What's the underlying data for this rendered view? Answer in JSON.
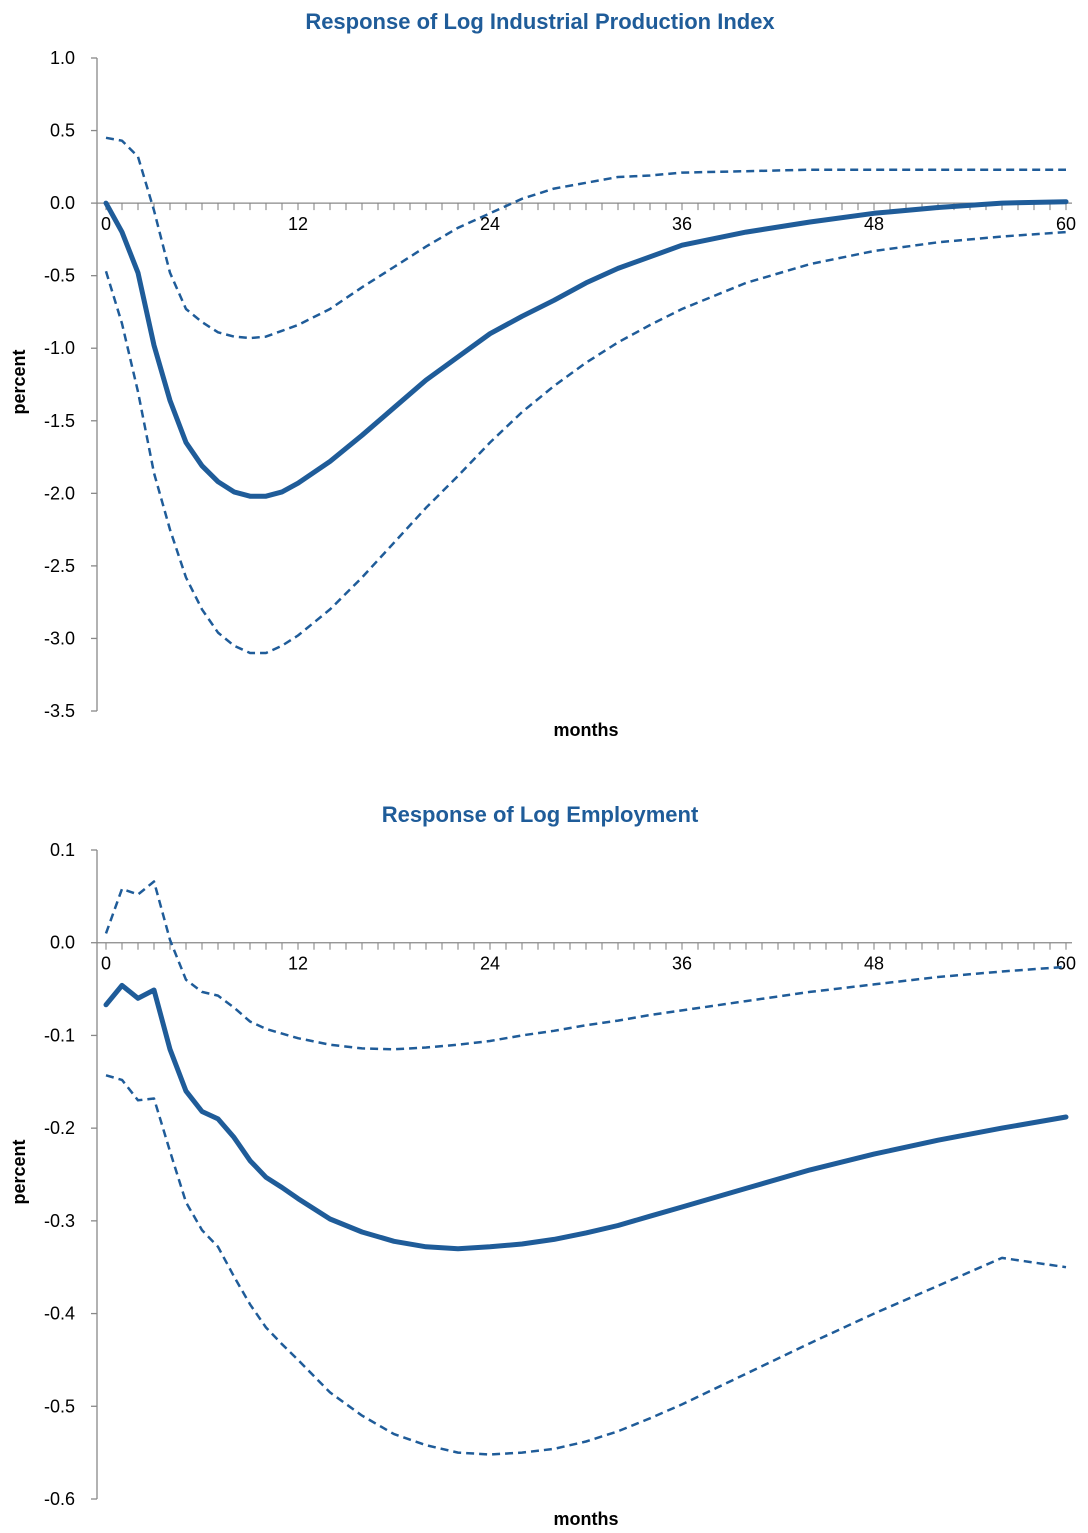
{
  "chart_data": [
    {
      "type": "line",
      "title": "Response of Log Industrial Production Index",
      "xlabel": "months",
      "ylabel": "percent",
      "xlim": [
        0,
        60
      ],
      "ylim": [
        -3.5,
        1.0
      ],
      "yticks": [
        1.0,
        0.5,
        0.0,
        -0.5,
        -1.0,
        -1.5,
        -2.0,
        -2.5,
        -3.0,
        -3.5
      ],
      "ytick_labels": [
        "1.0",
        "0.5",
        "0.0",
        "-0.5",
        "-1.0",
        "-1.5",
        "-2.0",
        "-2.5",
        "-3.0",
        "-3.5"
      ],
      "xticks": [
        0,
        12,
        24,
        36,
        48,
        60
      ],
      "xtick_labels": [
        "0",
        "12",
        "24",
        "36",
        "48",
        "60"
      ],
      "grid": false,
      "color": "#1f5c99",
      "series": [
        {
          "style": "solid",
          "x": [
            0,
            1,
            2,
            3,
            4,
            5,
            6,
            7,
            8,
            9,
            10,
            11,
            12,
            14,
            16,
            18,
            20,
            22,
            24,
            26,
            28,
            30,
            32,
            34,
            36,
            40,
            44,
            48,
            52,
            56,
            60
          ],
          "y": [
            0,
            -0.2,
            -0.48,
            -0.98,
            -1.36,
            -1.65,
            -1.81,
            -1.92,
            -1.99,
            -2.02,
            -2.02,
            -1.99,
            -1.93,
            -1.78,
            -1.6,
            -1.41,
            -1.22,
            -1.06,
            -0.9,
            -0.78,
            -0.67,
            -0.55,
            -0.45,
            -0.37,
            -0.29,
            -0.2,
            -0.13,
            -0.07,
            -0.03,
            0.0,
            0.01
          ]
        },
        {
          "style": "dashed",
          "x": [
            0,
            1,
            2,
            3,
            4,
            5,
            6,
            7,
            8,
            9,
            10,
            11,
            12,
            14,
            16,
            18,
            20,
            22,
            24,
            26,
            28,
            30,
            32,
            34,
            36,
            40,
            44,
            48,
            52,
            56,
            60
          ],
          "y": [
            0.45,
            0.43,
            0.32,
            -0.05,
            -0.48,
            -0.73,
            -0.82,
            -0.89,
            -0.92,
            -0.93,
            -0.92,
            -0.88,
            -0.84,
            -0.73,
            -0.58,
            -0.44,
            -0.3,
            -0.17,
            -0.07,
            0.03,
            0.1,
            0.14,
            0.18,
            0.19,
            0.21,
            0.22,
            0.23,
            0.23,
            0.23,
            0.23,
            0.23
          ]
        },
        {
          "style": "dashed",
          "x": [
            0,
            1,
            2,
            3,
            4,
            5,
            6,
            7,
            8,
            9,
            10,
            11,
            12,
            14,
            16,
            18,
            20,
            22,
            24,
            26,
            28,
            30,
            32,
            34,
            36,
            40,
            44,
            48,
            52,
            56,
            60
          ],
          "y": [
            -0.47,
            -0.83,
            -1.3,
            -1.86,
            -2.25,
            -2.58,
            -2.8,
            -2.96,
            -3.05,
            -3.1,
            -3.1,
            -3.05,
            -2.98,
            -2.8,
            -2.58,
            -2.34,
            -2.1,
            -1.88,
            -1.65,
            -1.44,
            -1.26,
            -1.1,
            -0.96,
            -0.84,
            -0.73,
            -0.55,
            -0.42,
            -0.33,
            -0.27,
            -0.23,
            -0.2
          ]
        }
      ]
    },
    {
      "type": "line",
      "title": "Response of Log Employment",
      "xlabel": "months",
      "ylabel": "percent",
      "xlim": [
        0,
        60
      ],
      "ylim": [
        -0.6,
        0.1
      ],
      "yticks": [
        0.1,
        0.0,
        -0.1,
        -0.2,
        -0.3,
        -0.4,
        -0.5,
        -0.6
      ],
      "ytick_labels": [
        "0.1",
        "0.0",
        "-0.1",
        "-0.2",
        "-0.3",
        "-0.4",
        "-0.5",
        "-0.6"
      ],
      "xticks": [
        0,
        12,
        24,
        36,
        48,
        60
      ],
      "xtick_labels": [
        "0",
        "12",
        "24",
        "36",
        "48",
        "60"
      ],
      "grid": false,
      "color": "#1f5c99",
      "series": [
        {
          "style": "solid",
          "x": [
            0,
            1,
            2,
            3,
            4,
            5,
            6,
            7,
            8,
            9,
            10,
            11,
            12,
            14,
            16,
            18,
            20,
            22,
            24,
            26,
            28,
            30,
            32,
            34,
            36,
            40,
            44,
            48,
            52,
            56,
            60
          ],
          "y": [
            -0.067,
            -0.046,
            -0.06,
            -0.051,
            -0.115,
            -0.16,
            -0.182,
            -0.19,
            -0.21,
            -0.235,
            -0.253,
            -0.264,
            -0.276,
            -0.298,
            -0.312,
            -0.322,
            -0.328,
            -0.33,
            -0.328,
            -0.325,
            -0.32,
            -0.313,
            -0.305,
            -0.295,
            -0.285,
            -0.265,
            -0.245,
            -0.228,
            -0.213,
            -0.2,
            -0.188
          ]
        },
        {
          "style": "dashed",
          "x": [
            0,
            1,
            2,
            3,
            4,
            5,
            6,
            7,
            8,
            9,
            10,
            11,
            12,
            14,
            16,
            18,
            20,
            22,
            24,
            26,
            28,
            30,
            32,
            34,
            36,
            40,
            44,
            48,
            52,
            56,
            60
          ],
          "y": [
            0.01,
            0.058,
            0.052,
            0.066,
            0.003,
            -0.04,
            -0.053,
            -0.057,
            -0.07,
            -0.085,
            -0.093,
            -0.098,
            -0.103,
            -0.11,
            -0.114,
            -0.115,
            -0.113,
            -0.11,
            -0.106,
            -0.1,
            -0.095,
            -0.089,
            -0.084,
            -0.078,
            -0.073,
            -0.063,
            -0.053,
            -0.045,
            -0.037,
            -0.031,
            -0.026
          ]
        },
        {
          "style": "dashed",
          "x": [
            0,
            1,
            2,
            3,
            4,
            5,
            6,
            7,
            8,
            9,
            10,
            11,
            12,
            14,
            16,
            18,
            20,
            22,
            24,
            26,
            28,
            30,
            32,
            34,
            36,
            40,
            44,
            48,
            52,
            56,
            60
          ],
          "y": [
            -0.143,
            -0.148,
            -0.17,
            -0.168,
            -0.225,
            -0.28,
            -0.31,
            -0.328,
            -0.36,
            -0.39,
            -0.415,
            -0.433,
            -0.45,
            -0.485,
            -0.51,
            -0.53,
            -0.542,
            -0.55,
            -0.552,
            -0.55,
            -0.546,
            -0.538,
            -0.527,
            -0.513,
            -0.498,
            -0.465,
            -0.432,
            -0.4,
            -0.37,
            -0.34,
            -0.35
          ]
        }
      ]
    }
  ]
}
